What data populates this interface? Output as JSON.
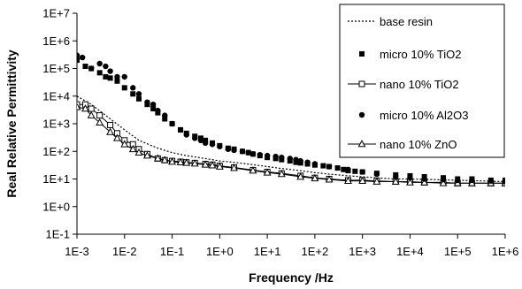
{
  "chart_data": {
    "type": "scatter",
    "xlabel": "Frequency /Hz",
    "ylabel": "Real Relative Permittivity",
    "x_scale": "log",
    "y_scale": "log",
    "xlim": [
      0.001,
      1000000
    ],
    "ylim": [
      0.1,
      10000000
    ],
    "x_tick_labels": [
      "1E-3",
      "1E-2",
      "1E-1",
      "1E+0",
      "1E+1",
      "1E+2",
      "1E+3",
      "1E+4",
      "1E+5",
      "1E+6"
    ],
    "y_tick_labels": [
      "1E-1",
      "1E+0",
      "1E+1",
      "1E+2",
      "1E+3",
      "1E+4",
      "1E+5",
      "1E+6",
      "1E+7"
    ],
    "grid": false,
    "legend_position": "top-right",
    "series": [
      {
        "name": "base resin",
        "style": "dotted-line",
        "color": "#000000",
        "x": [
          0.001,
          0.002,
          0.005,
          0.01,
          0.02,
          0.05,
          0.1,
          0.2,
          0.5,
          1,
          2,
          5,
          10,
          20,
          50,
          100,
          200,
          500,
          1000,
          2000,
          5000,
          10000,
          100000,
          1000000
        ],
        "y": [
          10000,
          5000,
          1500,
          600,
          250,
          130,
          90,
          70,
          55,
          45,
          40,
          33,
          28,
          24,
          20,
          17,
          15,
          13,
          12,
          11,
          10,
          10,
          9,
          8
        ]
      },
      {
        "name": "micro 10% TiO2",
        "style": "square-marker",
        "color": "#000000",
        "x": [
          0.001,
          0.0015,
          0.002,
          0.003,
          0.004,
          0.005,
          0.007,
          0.01,
          0.015,
          0.02,
          0.03,
          0.04,
          0.05,
          0.07,
          0.1,
          0.15,
          0.2,
          0.3,
          0.4,
          0.5,
          0.7,
          1,
          1.5,
          2,
          3,
          4,
          5,
          7,
          10,
          15,
          20,
          30,
          40,
          50,
          70,
          100,
          150,
          200,
          300,
          400,
          500,
          700,
          1000,
          2000,
          5000,
          10000,
          20000,
          50000,
          100000,
          200000,
          500000,
          1000000
        ],
        "y": [
          200000,
          120000,
          100000,
          70000,
          50000,
          45000,
          35000,
          20000,
          12000,
          8000,
          5000,
          3500,
          2500,
          1500,
          1000,
          600,
          450,
          350,
          300,
          250,
          200,
          160,
          130,
          120,
          100,
          90,
          80,
          70,
          60,
          55,
          50,
          45,
          40,
          38,
          35,
          32,
          30,
          28,
          25,
          22,
          20,
          19,
          18,
          16,
          14,
          13,
          12,
          11,
          10,
          10,
          9,
          9
        ]
      },
      {
        "name": "nano 10% TiO2",
        "style": "open-square-line",
        "color": "#000000",
        "x": [
          0.001,
          0.0015,
          0.002,
          0.003,
          0.005,
          0.007,
          0.01,
          0.015,
          0.02,
          0.03,
          0.05,
          0.07,
          0.1,
          0.15,
          0.2,
          0.3,
          0.5,
          0.7,
          1,
          2,
          5,
          10,
          20,
          50,
          100,
          200,
          500,
          1000,
          2000,
          5000,
          10000,
          20000,
          50000,
          100000,
          200000,
          500000,
          1000000
        ],
        "y": [
          5000,
          5000,
          3500,
          2000,
          900,
          450,
          250,
          180,
          120,
          80,
          55,
          48,
          45,
          42,
          40,
          38,
          35,
          33,
          30,
          26,
          21,
          18,
          16,
          13,
          11,
          10,
          9,
          9,
          8.5,
          8,
          8,
          7.5,
          7.5,
          7,
          7,
          7,
          7
        ]
      },
      {
        "name": "micro 10% Al2O3",
        "style": "circle-marker",
        "color": "#000000",
        "x": [
          0.001,
          0.0013,
          0.002,
          0.003,
          0.004,
          0.005,
          0.007,
          0.01,
          0.015,
          0.02,
          0.03,
          0.04,
          0.05,
          0.07,
          0.1,
          0.15,
          0.2,
          0.3,
          0.4,
          0.5,
          0.7,
          1,
          1.5,
          2,
          3,
          4,
          5,
          7,
          10,
          15,
          20,
          30,
          40,
          50,
          70,
          100,
          200,
          500,
          1000,
          2000,
          5000,
          10000,
          20000,
          50000,
          100000,
          200000,
          500000,
          1000000
        ],
        "y": [
          300000,
          250000,
          100000,
          150000,
          120000,
          80000,
          50000,
          50000,
          20000,
          12000,
          6000,
          5000,
          3000,
          2000,
          1000,
          600,
          400,
          300,
          250,
          200,
          180,
          150,
          120,
          110,
          100,
          90,
          80,
          75,
          70,
          65,
          60,
          55,
          50,
          45,
          40,
          35,
          28,
          22,
          18,
          15,
          12,
          11,
          10,
          9.5,
          9,
          9,
          8.5,
          8
        ]
      },
      {
        "name": "nano 10% ZnO",
        "style": "open-triangle-line",
        "color": "#000000",
        "x": [
          0.001,
          0.0015,
          0.002,
          0.003,
          0.005,
          0.007,
          0.01,
          0.015,
          0.02,
          0.03,
          0.05,
          0.07,
          0.1,
          0.15,
          0.2,
          0.3,
          0.5,
          0.7,
          1,
          2,
          5,
          10,
          20,
          50,
          100,
          200,
          500,
          1000,
          2000,
          5000,
          10000,
          20000,
          50000,
          100000,
          200000,
          500000,
          1000000
        ],
        "y": [
          4000,
          3500,
          2000,
          1100,
          500,
          300,
          180,
          120,
          90,
          70,
          55,
          48,
          42,
          40,
          38,
          36,
          33,
          31,
          28,
          25,
          20,
          17,
          15,
          12,
          10.5,
          9.5,
          8.5,
          8.5,
          8,
          8,
          7.5,
          7.5,
          7,
          7,
          7,
          7,
          7
        ]
      }
    ]
  }
}
